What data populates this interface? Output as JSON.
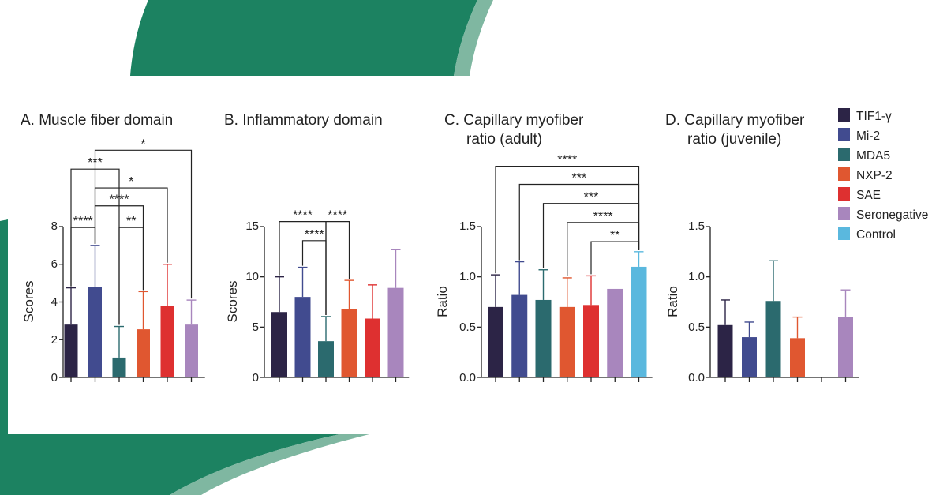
{
  "colors": {
    "background_green": "#1c8261",
    "background_green_light": "#7fb7a1",
    "series": [
      "#2c2446",
      "#414b8f",
      "#2b6a6e",
      "#e05730",
      "#de3030",
      "#a886bd",
      "#5ab8de"
    ]
  },
  "legend": [
    "TIF1-γ",
    "Mi-2",
    "MDA5",
    "NXP-2",
    "SAE",
    "Seronegative",
    "Control"
  ],
  "chart_data": [
    {
      "type": "bar",
      "title_lines": [
        "A. Muscle fiber domain"
      ],
      "ylabel": "Scores",
      "ylim": [
        0,
        8
      ],
      "yticks": [
        "0",
        "2",
        "4",
        "6",
        "8"
      ],
      "categories": [
        "TIF1-γ",
        "Mi-2",
        "MDA5",
        "NXP-2",
        "SAE",
        "Seronegative"
      ],
      "values": [
        2.8,
        4.8,
        1.05,
        2.55,
        3.8,
        2.8
      ],
      "errors": [
        1.95,
        2.2,
        1.65,
        2.0,
        2.2,
        1.3
      ],
      "significance": [
        {
          "from": 0,
          "to": 1,
          "label": "****",
          "level": 7.95
        },
        {
          "from": 2,
          "to": 3,
          "label": "**",
          "level": 7.95
        },
        {
          "from": 1,
          "to": 3,
          "label": "****",
          "level": 9.1
        },
        {
          "from": 1,
          "to": 4,
          "label": "*",
          "level": 10.05
        },
        {
          "from": 0,
          "to": 2,
          "label": "***",
          "level": 11.05
        },
        {
          "from": 1,
          "to": 5,
          "label": "*",
          "level": 12.05
        }
      ]
    },
    {
      "type": "bar",
      "title_lines": [
        "B. Inflammatory domain"
      ],
      "ylabel": "Scores",
      "ylim": [
        0,
        15
      ],
      "yticks": [
        "0",
        "5",
        "10",
        "15"
      ],
      "categories": [
        "TIF1-γ",
        "Mi-2",
        "MDA5",
        "NXP-2",
        "SAE",
        "Seronegative"
      ],
      "values": [
        6.5,
        8.0,
        3.6,
        6.8,
        5.85,
        8.9
      ],
      "errors": [
        3.5,
        2.95,
        2.45,
        2.85,
        3.35,
        3.8
      ],
      "significance": [
        {
          "from": 1,
          "to": 2,
          "label": "****",
          "level": 13.6
        },
        {
          "from": 0,
          "to": 2,
          "label": "****",
          "level": 15.5
        },
        {
          "from": 2,
          "to": 3,
          "label": "****",
          "level": 15.5
        }
      ]
    },
    {
      "type": "bar",
      "title_lines": [
        "C. Capillary myofiber",
        "ratio (adult)"
      ],
      "ylabel": "Ratio",
      "ylim": [
        0,
        1.5
      ],
      "yticks": [
        "0.0",
        "0.5",
        "1.0",
        "1.5"
      ],
      "categories": [
        "TIF1-γ",
        "Mi-2",
        "MDA5",
        "NXP-2",
        "SAE",
        "Seronegative",
        "Control"
      ],
      "values": [
        0.7,
        0.82,
        0.77,
        0.7,
        0.72,
        0.88,
        1.1
      ],
      "errors": [
        0.32,
        0.33,
        0.3,
        0.29,
        0.29,
        0.0,
        0.15
      ],
      "significance": [
        {
          "from": 4,
          "to": 6,
          "label": "**",
          "level": 1.35
        },
        {
          "from": 3,
          "to": 6,
          "label": "****",
          "level": 1.54
        },
        {
          "from": 2,
          "to": 6,
          "label": "***",
          "level": 1.73
        },
        {
          "from": 1,
          "to": 6,
          "label": "***",
          "level": 1.92
        },
        {
          "from": 0,
          "to": 6,
          "label": "****",
          "level": 2.1
        }
      ]
    },
    {
      "type": "bar",
      "title_lines": [
        "D. Capillary myofiber",
        "ratio (juvenile)"
      ],
      "ylabel": "Ratio",
      "ylim": [
        0,
        1.5
      ],
      "yticks": [
        "0.0",
        "0.5",
        "1.0",
        "1.5"
      ],
      "categories": [
        "TIF1-γ",
        "Mi-2",
        "MDA5",
        "NXP-2",
        "SAE",
        "Seronegative"
      ],
      "values": [
        0.52,
        0.4,
        0.76,
        0.39,
        0.0,
        0.6
      ],
      "errors": [
        0.25,
        0.15,
        0.4,
        0.21,
        0.0,
        0.27
      ],
      "significance": []
    }
  ]
}
